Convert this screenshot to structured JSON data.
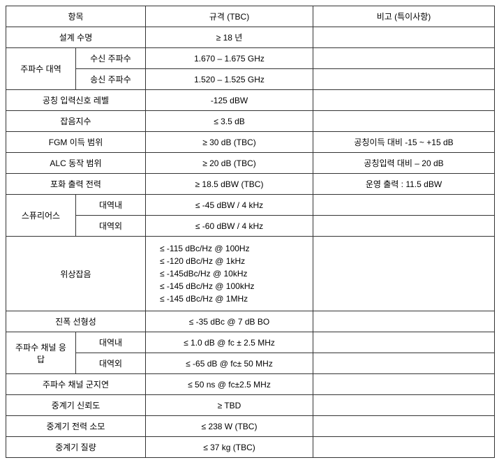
{
  "table": {
    "headers": {
      "item": "항목",
      "spec": "규격 (TBC)",
      "note": "비고 (특이사항)"
    },
    "rows": [
      {
        "type": "single",
        "item": "설계 수명",
        "spec": "≥ 18 년",
        "note": ""
      },
      {
        "type": "double",
        "item_main": "주파수 대역",
        "sub_rows": [
          {
            "item_sub": "수신 주파수",
            "spec": "1.670 – 1.675 GHz",
            "note": ""
          },
          {
            "item_sub": "송신 주파수",
            "spec": "1.520 – 1.525 GHz",
            "note": ""
          }
        ]
      },
      {
        "type": "single",
        "item": "공칭 입력신호 레벨",
        "spec": "-125 dBW",
        "note": ""
      },
      {
        "type": "single",
        "item": "잡음지수",
        "spec": "≤ 3.5 dB",
        "note": ""
      },
      {
        "type": "single",
        "item": "FGM 이득 범위",
        "spec": "≥ 30 dB (TBC)",
        "note": "공칭이득 대비 -15 ~ +15 dB"
      },
      {
        "type": "single",
        "item": "ALC 동작 범위",
        "spec": "≥ 20 dB (TBC)",
        "note": "공칭입력 대비 – 20 dB"
      },
      {
        "type": "single",
        "item": "포화 출력 전력",
        "spec": "≥ 18.5 dBW (TBC)",
        "note": "운영 출력 : 11.5 dBW"
      },
      {
        "type": "double",
        "item_main": "스퓨리어스",
        "sub_rows": [
          {
            "item_sub": "대역내",
            "spec": "≤ -45 dBW / 4 kHz",
            "note": ""
          },
          {
            "item_sub": "대역외",
            "spec": "≤ -60 dBW / 4 kHz",
            "note": ""
          }
        ]
      },
      {
        "type": "multiline",
        "item": "위상잡음",
        "spec_lines": [
          "≤ -115 dBc/Hz @ 100Hz",
          "≤ -120 dBc/Hz @ 1kHz",
          "≤ -145dBc/Hz @ 10kHz",
          "≤ -145 dBc/Hz @ 100kHz",
          "≤ -145 dBc/Hz @ 1MHz"
        ],
        "note": ""
      },
      {
        "type": "single",
        "item": "진폭 선형성",
        "spec": "≤ -35 dBc @ 7 dB BO",
        "note": ""
      },
      {
        "type": "double",
        "item_main": "주파수 채널 응답",
        "sub_rows": [
          {
            "item_sub": "대역내",
            "spec": "≤ 1.0 dB @ fc ± 2.5 MHz",
            "note": ""
          },
          {
            "item_sub": "대역외",
            "spec": "≤ -65 dB @ fc± 50 MHz",
            "note": ""
          }
        ]
      },
      {
        "type": "single",
        "item": "주파수 채널 군지연",
        "spec": "≤ 50 ns @ fc±2.5 MHz",
        "note": ""
      },
      {
        "type": "single",
        "item": "중계기 신뢰도",
        "spec": "≥ TBD",
        "note": ""
      },
      {
        "type": "single",
        "item": "중계기 전력 소모",
        "spec": "≤ 238 W (TBC)",
        "note": ""
      },
      {
        "type": "single",
        "item": "중계기 질량",
        "spec": "≤ 37 kg (TBC)",
        "note": ""
      }
    ]
  }
}
